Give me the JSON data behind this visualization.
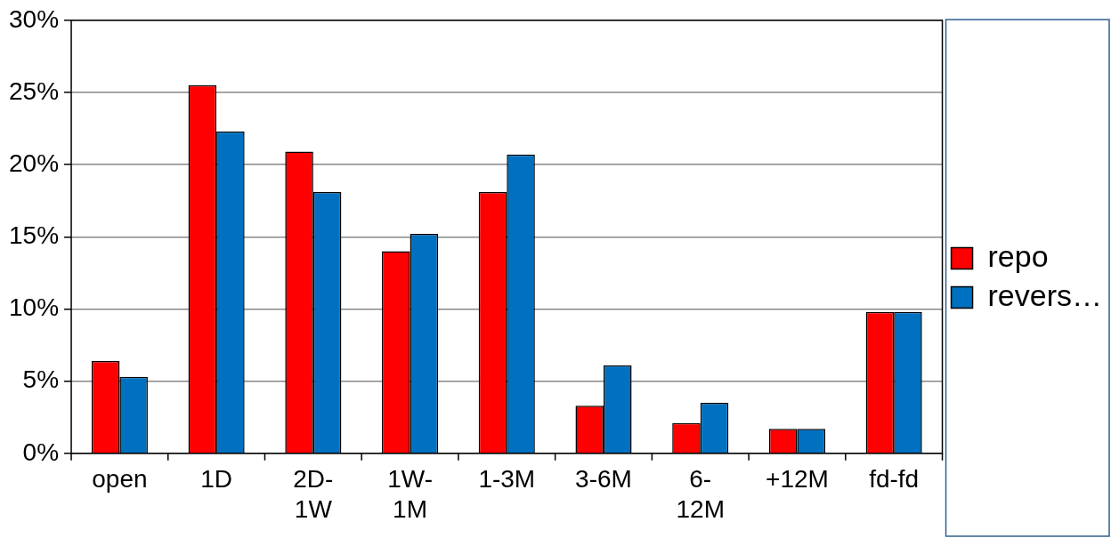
{
  "chart_data": {
    "type": "bar",
    "categories": [
      "open",
      "1D",
      "2D-1W",
      "1W-1M",
      "1-3M",
      "3-6M",
      "6-12M",
      "+12M",
      "fd-fd"
    ],
    "series": [
      {
        "name": "repo",
        "color": "#ff0000",
        "values": [
          6.4,
          25.5,
          20.9,
          14.0,
          18.1,
          3.3,
          2.1,
          1.7,
          9.8
        ]
      },
      {
        "name": "revers…",
        "color": "#0070c0",
        "values": [
          5.3,
          22.3,
          18.1,
          15.2,
          20.7,
          6.1,
          3.5,
          1.7,
          9.8
        ]
      }
    ],
    "ylim": [
      0,
      30
    ],
    "yticks": [
      {
        "value": 0,
        "label": "0%"
      },
      {
        "value": 5,
        "label": "5%"
      },
      {
        "value": 10,
        "label": "10%"
      },
      {
        "value": 15,
        "label": "15%"
      },
      {
        "value": 20,
        "label": "20%"
      },
      {
        "value": 25,
        "label": "25%"
      },
      {
        "value": 30,
        "label": "30%"
      }
    ],
    "grid": "y",
    "legend": "right"
  }
}
